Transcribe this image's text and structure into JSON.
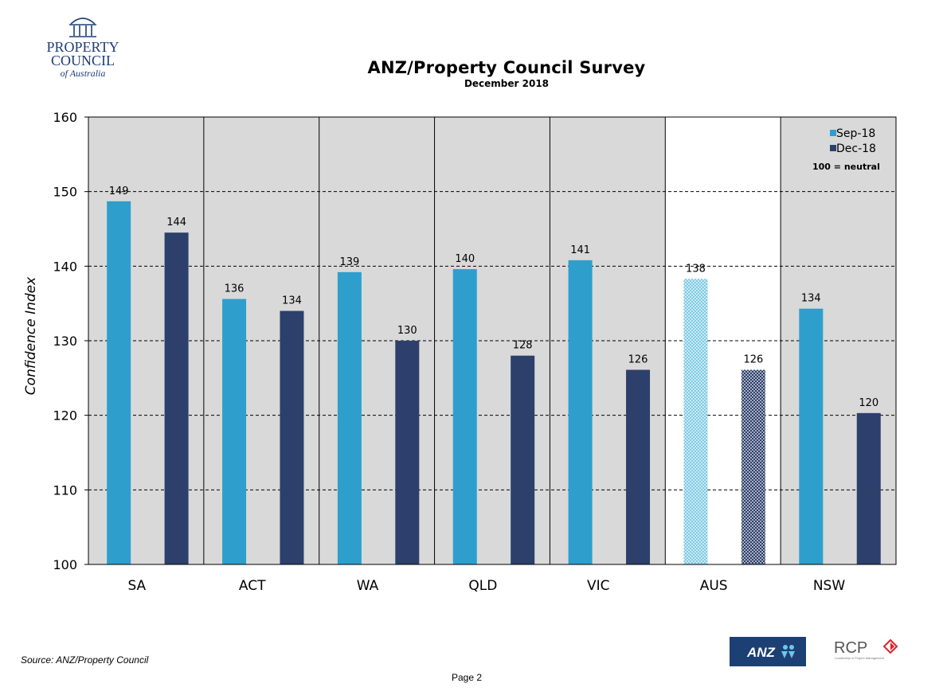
{
  "logo": {
    "line1": "PROPERTY",
    "line2": "COUNCIL",
    "line3": "of Australia"
  },
  "header": {
    "title": "ANZ/Property Council Survey",
    "subtitle": "December 2018"
  },
  "chart_data": {
    "type": "bar",
    "title": "ANZ/Property Council Survey",
    "subtitle": "December 2018",
    "ylabel": "Confidence Index",
    "xlabel": "",
    "ylim": [
      100,
      160
    ],
    "yticks": [
      100,
      110,
      120,
      130,
      140,
      150,
      160
    ],
    "categories": [
      "SA",
      "ACT",
      "WA",
      "QLD",
      "VIC",
      "AUS",
      "NSW"
    ],
    "series": [
      {
        "name": "Sep-18",
        "color": "#2e9fcd",
        "values": [
          148.7,
          135.6,
          139.2,
          139.6,
          140.8,
          138.3,
          134.3
        ],
        "labels": [
          "149",
          "136",
          "139",
          "140",
          "141",
          "138",
          "134"
        ]
      },
      {
        "name": "Dec-18",
        "color": "#2d3f6b",
        "values": [
          144.5,
          134.0,
          130.0,
          128.0,
          126.1,
          126.1,
          120.3
        ],
        "labels": [
          "144",
          "134",
          "130",
          "128",
          "126",
          "126",
          "120"
        ]
      }
    ],
    "highlight_category": "AUS",
    "grid": "dashed horizontal",
    "legend_position": "top-right",
    "legend_note": "100 = neutral",
    "plot_background": "#d9d9d9"
  },
  "footer": {
    "source": "Source: ANZ/Property Council",
    "page": "Page 2"
  },
  "partner_logos": {
    "anz": "ANZ",
    "rcp": "RCP",
    "rcp_tagline": "Leadership in Project Management"
  },
  "colors": {
    "anz_blue": "#1c3f74",
    "rcp_red": "#e2202a"
  }
}
